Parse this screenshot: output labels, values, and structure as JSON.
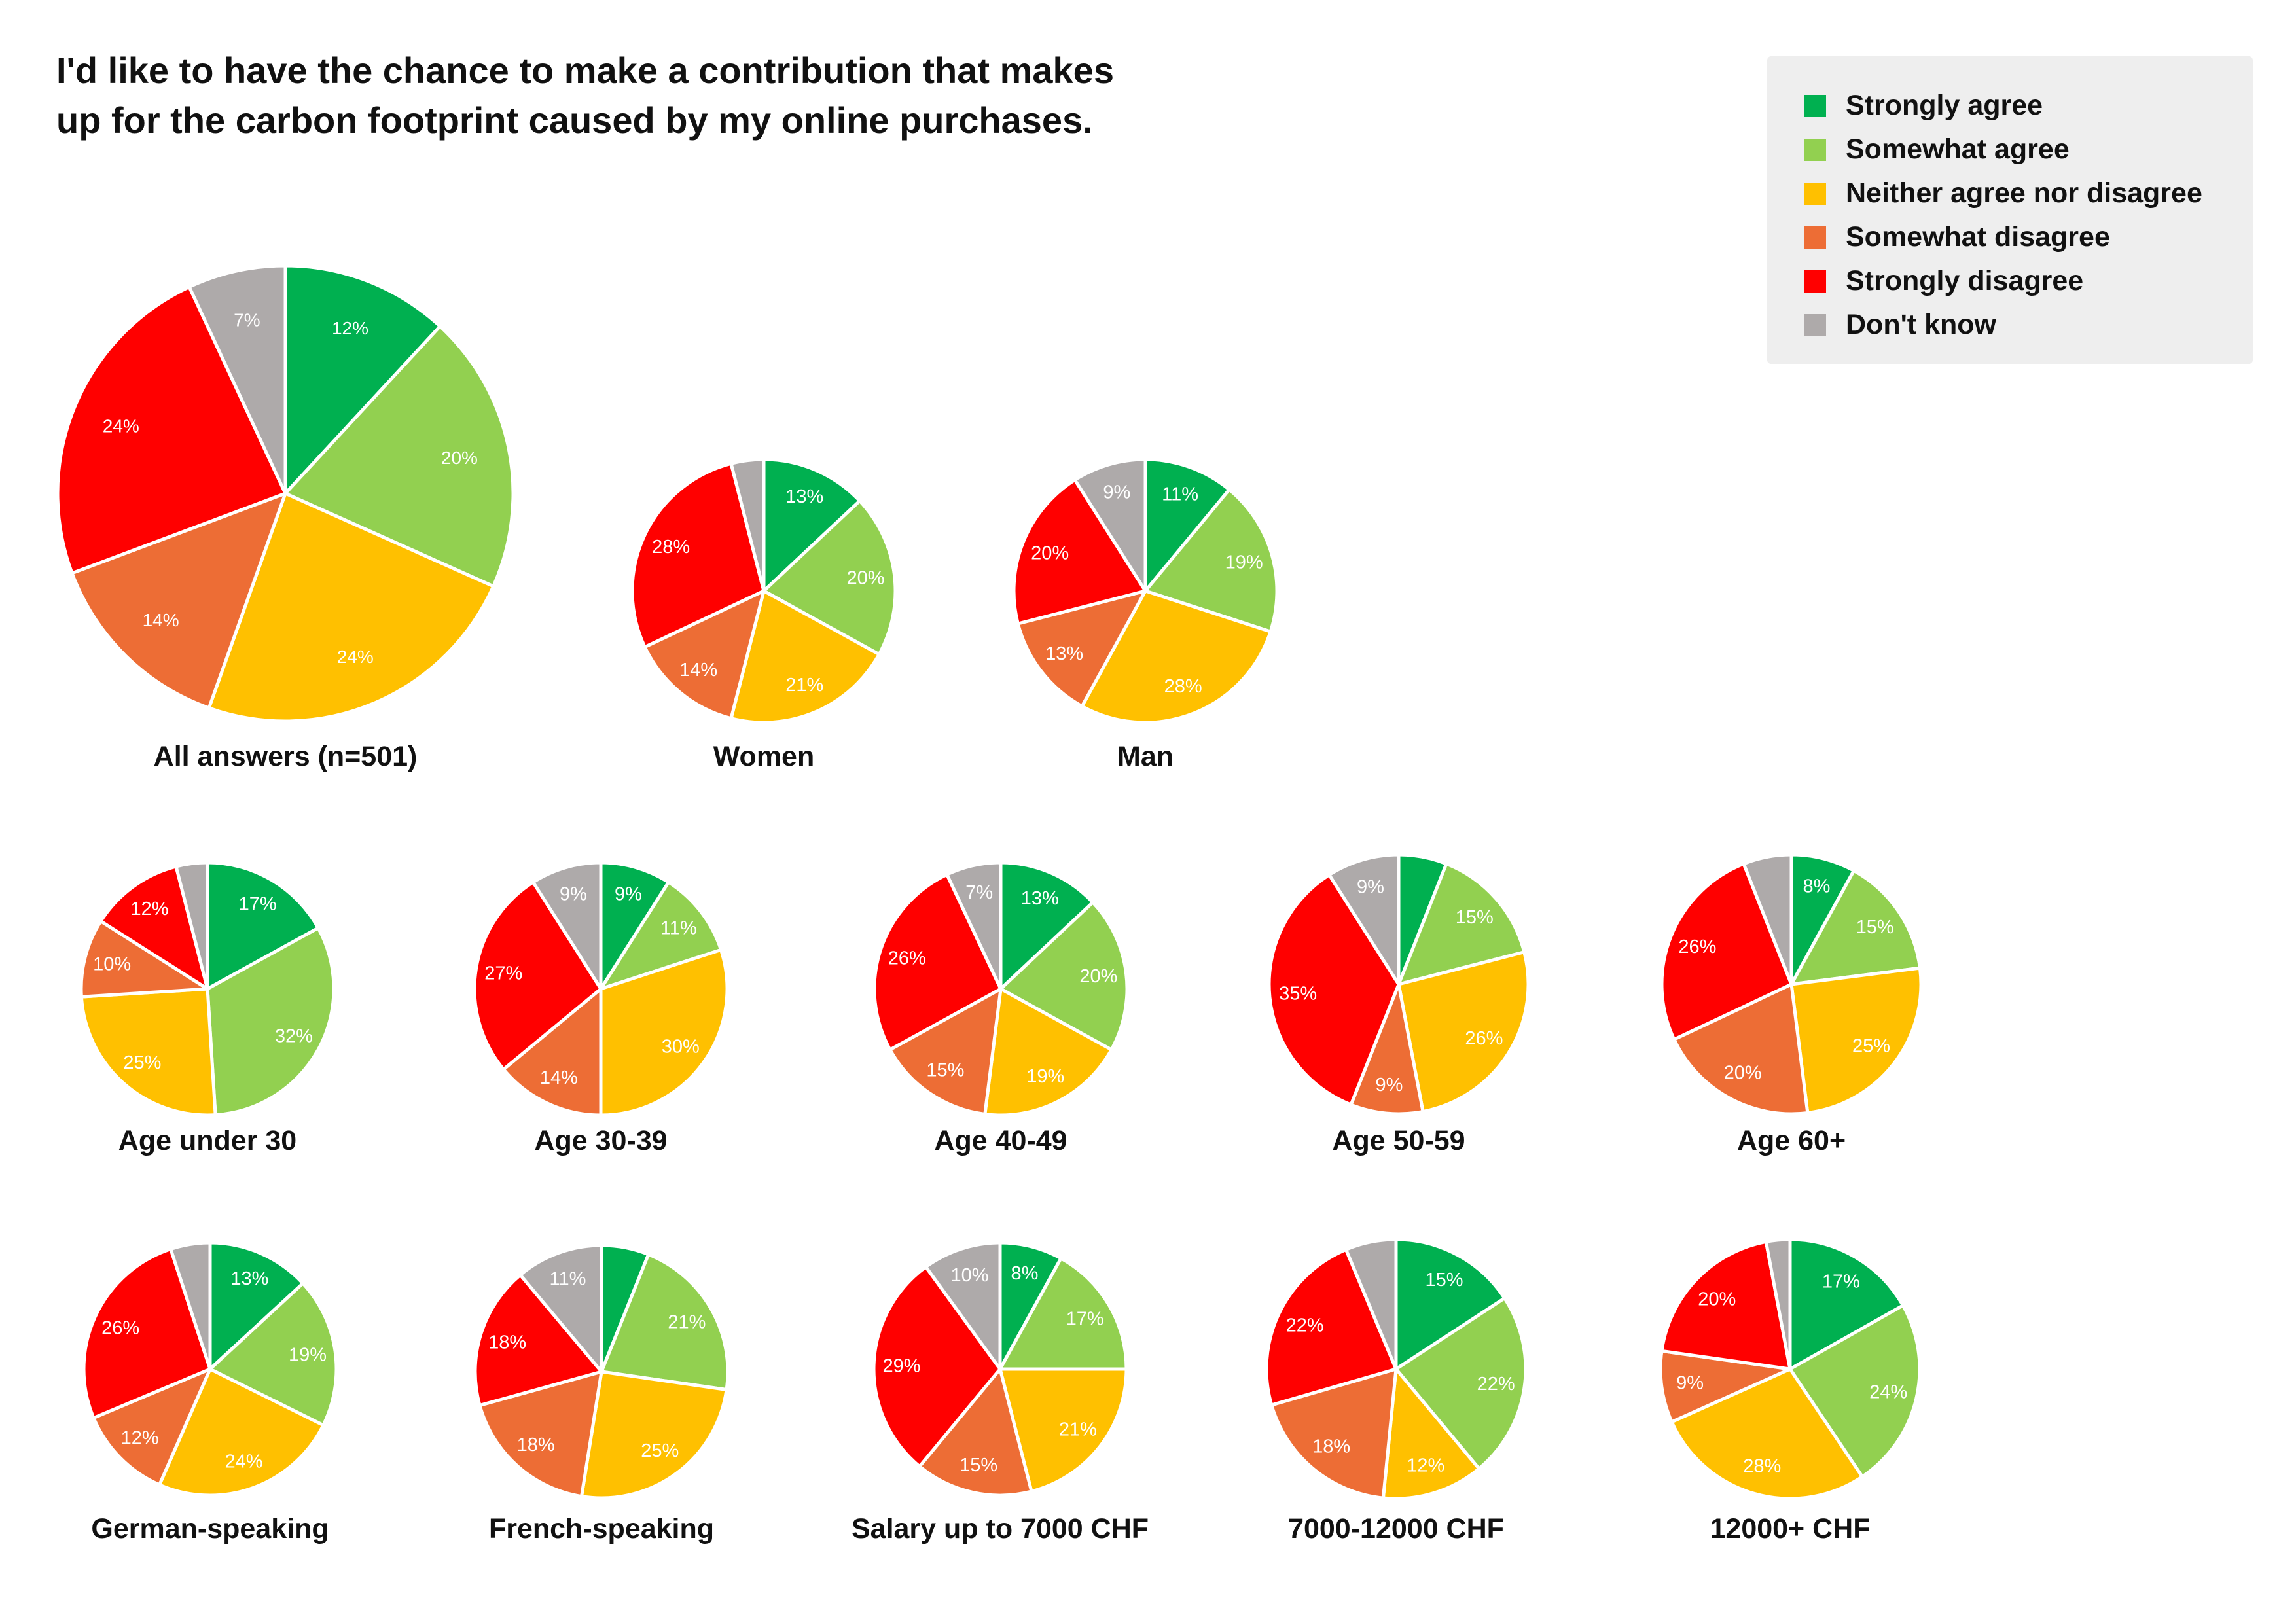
{
  "title_lines": [
    "I'd like to have the chance to make a contribution that makes",
    "up for the carbon footprint caused by my online purchases."
  ],
  "legend": [
    {
      "label": "Strongly agree",
      "color": "#00b050"
    },
    {
      "label": "Somewhat agree",
      "color": "#92d050"
    },
    {
      "label": "Neither agree nor disagree",
      "color": "#ffc000"
    },
    {
      "label": "Somewhat disagree",
      "color": "#ed6d35"
    },
    {
      "label": "Strongly disagree",
      "color": "#ff0000"
    },
    {
      "label": "Don't know",
      "color": "#aeaaaa"
    }
  ],
  "chart_data": [
    {
      "type": "pie",
      "name": "All answers (n=501)",
      "categories": [
        "Strongly agree",
        "Somewhat agree",
        "Neither agree nor disagree",
        "Somewhat disagree",
        "Strongly disagree",
        "Don't know"
      ],
      "values": [
        12,
        20,
        24,
        14,
        24,
        7
      ],
      "data_labels": [
        "12%",
        "20%",
        "24%",
        "14%",
        "24%",
        "7%"
      ]
    },
    {
      "type": "pie",
      "name": "Women",
      "categories": [
        "Strongly agree",
        "Somewhat agree",
        "Neither agree nor disagree",
        "Somewhat disagree",
        "Strongly disagree",
        "Don't know"
      ],
      "values": [
        13,
        20,
        21,
        14,
        28,
        4
      ],
      "data_labels": [
        "13%",
        "20%",
        "21%",
        "14%",
        "28%",
        ""
      ]
    },
    {
      "type": "pie",
      "name": "Man",
      "categories": [
        "Strongly agree",
        "Somewhat agree",
        "Neither agree nor disagree",
        "Somewhat disagree",
        "Strongly disagree",
        "Don't know"
      ],
      "values": [
        11,
        19,
        28,
        13,
        20,
        9
      ],
      "data_labels": [
        "11%",
        "19%",
        "28%",
        "13%",
        "20%",
        "9%"
      ]
    },
    {
      "type": "pie",
      "name": "Age under 30",
      "categories": [
        "Strongly agree",
        "Somewhat agree",
        "Neither agree nor disagree",
        "Somewhat disagree",
        "Strongly disagree",
        "Don't know"
      ],
      "values": [
        17,
        32,
        25,
        10,
        12,
        4
      ],
      "data_labels": [
        "17%",
        "32%",
        "25%",
        "10%",
        "12%",
        ""
      ]
    },
    {
      "type": "pie",
      "name": "Age 30-39",
      "categories": [
        "Strongly agree",
        "Somewhat agree",
        "Neither agree nor disagree",
        "Somewhat disagree",
        "Strongly disagree",
        "Don't know"
      ],
      "values": [
        9,
        11,
        30,
        14,
        27,
        9
      ],
      "data_labels": [
        "9%",
        "11%",
        "30%",
        "14%",
        "27%",
        "9%"
      ]
    },
    {
      "type": "pie",
      "name": "Age 40-49",
      "categories": [
        "Strongly agree",
        "Somewhat agree",
        "Neither agree nor disagree",
        "Somewhat disagree",
        "Strongly disagree",
        "Don't know"
      ],
      "values": [
        13,
        20,
        19,
        15,
        26,
        7
      ],
      "data_labels": [
        "13%",
        "20%",
        "19%",
        "15%",
        "26%",
        "7%"
      ]
    },
    {
      "type": "pie",
      "name": "Age 50-59",
      "categories": [
        "Strongly agree",
        "Somewhat agree",
        "Neither agree nor disagree",
        "Somewhat disagree",
        "Strongly disagree",
        "Don't know"
      ],
      "values": [
        6,
        15,
        26,
        9,
        35,
        9
      ],
      "data_labels": [
        "",
        "15%",
        "26%",
        "9%",
        "35%",
        "9%"
      ]
    },
    {
      "type": "pie",
      "name": "Age 60+",
      "categories": [
        "Strongly agree",
        "Somewhat agree",
        "Neither agree nor disagree",
        "Somewhat disagree",
        "Strongly disagree",
        "Don't know"
      ],
      "values": [
        8,
        15,
        25,
        20,
        26,
        6
      ],
      "data_labels": [
        "8%",
        "15%",
        "25%",
        "20%",
        "26%",
        ""
      ]
    },
    {
      "type": "pie",
      "name": "German-speaking",
      "categories": [
        "Strongly agree",
        "Somewhat agree",
        "Neither agree nor disagree",
        "Somewhat disagree",
        "Strongly disagree",
        "Don't know"
      ],
      "values": [
        13,
        19,
        24,
        12,
        26,
        5
      ],
      "data_labels": [
        "13%",
        "19%",
        "24%",
        "12%",
        "26%",
        ""
      ]
    },
    {
      "type": "pie",
      "name": "French-speaking",
      "categories": [
        "Strongly agree",
        "Somewhat agree",
        "Neither agree nor disagree",
        "Somewhat disagree",
        "Strongly disagree",
        "Don't know"
      ],
      "values": [
        6,
        21,
        25,
        18,
        18,
        11
      ],
      "data_labels": [
        "",
        "21%",
        "25%",
        "18%",
        "18%",
        "11%"
      ]
    },
    {
      "type": "pie",
      "name": "Salary up to 7000 CHF",
      "categories": [
        "Strongly agree",
        "Somewhat agree",
        "Neither agree nor disagree",
        "Somewhat disagree",
        "Strongly disagree",
        "Don't know"
      ],
      "values": [
        8,
        17,
        21,
        15,
        29,
        10
      ],
      "data_labels": [
        "8%",
        "17%",
        "21%",
        "15%",
        "29%",
        "10%"
      ]
    },
    {
      "type": "pie",
      "name": "7000-12000 CHF",
      "categories": [
        "Strongly agree",
        "Somewhat agree",
        "Neither agree nor disagree",
        "Somewhat disagree",
        "Strongly disagree",
        "Don't know"
      ],
      "values": [
        15,
        22,
        12,
        18,
        22,
        6
      ],
      "data_labels": [
        "15%",
        "22%",
        "12%",
        "18%",
        "22%",
        ""
      ]
    },
    {
      "type": "pie",
      "name": "12000+ CHF",
      "categories": [
        "Strongly agree",
        "Somewhat agree",
        "Neither agree nor disagree",
        "Somewhat disagree",
        "Strongly disagree",
        "Don't know"
      ],
      "values": [
        17,
        24,
        28,
        9,
        20,
        3
      ],
      "data_labels": [
        "17%",
        "24%",
        "28%",
        "9%",
        "20%",
        ""
      ]
    }
  ]
}
